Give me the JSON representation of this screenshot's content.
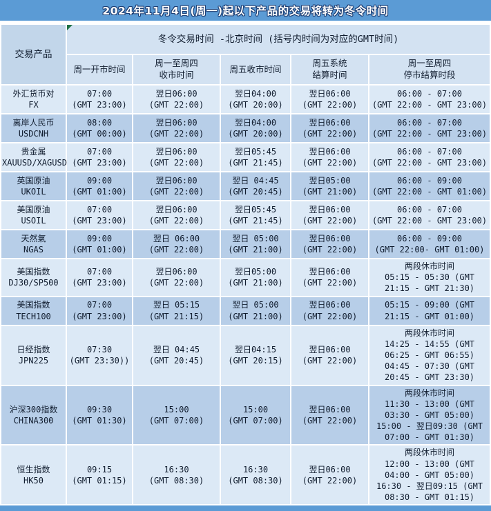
{
  "title": "2024年11月4日(周一)起以下产品的交易将转为冬令时间",
  "colors": {
    "title_bar": "#5b9bd5",
    "title_outline": "#1e3f74",
    "header_bg": "#d3e2f2",
    "product_header_bg": "#c2d6ea",
    "row_light": "#dce9f6",
    "row_dark": "#b7cee8",
    "text": "#101c2e",
    "marker_green": "#1e7145",
    "grid_line": "#ffffff"
  },
  "table": {
    "product_header": "交易产品",
    "group_header": "冬令交易时间 -北京时间 (括号内时间为对应的GMT时间)",
    "columns": [
      {
        "lines": [
          "周一开市时间"
        ]
      },
      {
        "lines": [
          "周一至周四",
          "收市时间"
        ]
      },
      {
        "lines": [
          "周五收市时间"
        ]
      },
      {
        "lines": [
          "周五系统",
          "结算时间"
        ]
      },
      {
        "lines": [
          "周一至周四",
          "停市结算时段"
        ]
      }
    ],
    "rows": [
      {
        "product": [
          "外汇货币对",
          "FX"
        ],
        "monday_open": [
          "07:00",
          "(GMT 23:00)"
        ],
        "mon_thu_close": [
          "翌日06:00",
          "(GMT 22:00)"
        ],
        "fri_close": [
          "翌日04:00",
          "(GMT 20:00)"
        ],
        "fri_settle": [
          "翌日06:00",
          "(GMT 22:00)"
        ],
        "break_time": [
          "06:00 - 07:00",
          "(GMT 22:00 - GMT 23:00)"
        ]
      },
      {
        "product": [
          "离岸人民币",
          "USDCNH"
        ],
        "monday_open": [
          "08:00",
          "(GMT 00:00)"
        ],
        "mon_thu_close": [
          "翌日06:00",
          "(GMT 22:00)"
        ],
        "fri_close": [
          "翌日04:00",
          "(GMT 20:00)"
        ],
        "fri_settle": [
          "翌日06:00",
          "(GMT 22:00)"
        ],
        "break_time": [
          "06:00 - 07:00",
          "(GMT 22:00 - GMT 23:00)"
        ]
      },
      {
        "product": [
          "贵金属",
          "XAUUSD/XAGUSD"
        ],
        "monday_open": [
          "07:00",
          "(GMT 23:00)"
        ],
        "mon_thu_close": [
          "翌日06:00",
          "(GMT 22:00)"
        ],
        "fri_close": [
          "翌日05:45",
          "(GMT 21:45)"
        ],
        "fri_settle": [
          "翌日06:00",
          "(GMT 22:00)"
        ],
        "break_time": [
          "06:00 - 07:00",
          "(GMT 22:00 - GMT 23:00)"
        ]
      },
      {
        "product": [
          "英国原油",
          "UKOIL"
        ],
        "monday_open": [
          "09:00",
          "(GMT 01:00)"
        ],
        "mon_thu_close": [
          "翌日06:00",
          "(GMT 22:00)"
        ],
        "fri_close": [
          "翌日 04:45",
          "(GMT 20:45)"
        ],
        "fri_settle": [
          "翌日05:00",
          "(GMT 21:00)"
        ],
        "break_time": [
          "06:00 - 09:00",
          "(GMT 22:00 - GMT 01:00)"
        ]
      },
      {
        "product": [
          "美国原油",
          "USOIL"
        ],
        "monday_open": [
          "07:00",
          "(GMT 23:00)"
        ],
        "mon_thu_close": [
          "翌日06:00",
          "(GMT 22:00)"
        ],
        "fri_close": [
          "翌日05:45",
          "(GMT 21:45)"
        ],
        "fri_settle": [
          "翌日06:00",
          "(GMT 22:00)"
        ],
        "break_time": [
          "06:00 - 07:00",
          "(GMT 22:00 - GMT 23:00)"
        ]
      },
      {
        "product": [
          "天然氣",
          "NGAS"
        ],
        "monday_open": [
          "09:00",
          "(GMT 01:00)"
        ],
        "mon_thu_close": [
          "翌日 06:00",
          "(GMT 22:00)"
        ],
        "fri_close": [
          "翌日 05:00",
          "(GMT 21:00)"
        ],
        "fri_settle": [
          "翌日06:00",
          "(GMT 22:00)"
        ],
        "break_time": [
          "06:00 - 09:00",
          "(GMT 22:00- GMT 01:00)"
        ]
      },
      {
        "product": [
          "美国指数",
          "DJ30/SP500"
        ],
        "monday_open": [
          "07:00",
          "(GMT 23:00)"
        ],
        "mon_thu_close": [
          "翌日06:00",
          "(GMT 22:00)"
        ],
        "fri_close": [
          "翌日05:00",
          "(GMT 21:00)"
        ],
        "fri_settle": [
          "翌日06:00",
          "(GMT 22:00)"
        ],
        "break_time": [
          "两段休市时间",
          "05:15 - 05:30 (GMT",
          "21:15 - GMT 21:30)"
        ]
      },
      {
        "product": [
          "美国指数",
          "TECH100"
        ],
        "monday_open": [
          "07:00",
          "(GMT 23:00)"
        ],
        "mon_thu_close": [
          "翌日 05:15",
          "(GMT 21:15)"
        ],
        "fri_close": [
          "翌日 05:00",
          "(GMT 21:00)"
        ],
        "fri_settle": [
          "翌日06:00",
          "(GMT 22:00)"
        ],
        "break_time": [
          "05:15 - 09:00 (GMT",
          "21:15 - GMT 01:00)"
        ]
      },
      {
        "product": [
          "日经指数",
          "JPN225"
        ],
        "monday_open": [
          "07:30",
          "(GMT 23:30))"
        ],
        "mon_thu_close": [
          "翌日 04:45",
          "(GMT 20:45)"
        ],
        "fri_close": [
          "翌日04:15",
          "(GMT 20:15)"
        ],
        "fri_settle": [
          "翌日06:00",
          "(GMT 22:00)"
        ],
        "break_time": [
          "两段休市时间",
          "14:25 - 14:55 (GMT",
          "06:25 - GMT 06:55)",
          "04:45 - 07:30 (GMT",
          "20:45 - GMT 23:30)"
        ]
      },
      {
        "product": [
          "沪深300指数",
          "CHINA300"
        ],
        "monday_open": [
          "09:30",
          "(GMT 01:30)"
        ],
        "mon_thu_close": [
          "15:00",
          "(GMT 07:00)"
        ],
        "fri_close": [
          "15:00",
          "(GMT 07:00)"
        ],
        "fri_settle": [
          "翌日06:00",
          "(GMT 22:00)"
        ],
        "break_time": [
          "两段休市时间",
          "11:30 - 13:00 (GMT",
          "03:30 - GMT 05:00)",
          "15:00 - 翌日09:30 (GMT",
          "07:00 - GMT 01:30)"
        ]
      },
      {
        "product": [
          "恒生指数",
          "HK50"
        ],
        "monday_open": [
          "09:15",
          "(GMT 01:15)"
        ],
        "mon_thu_close": [
          "16:30",
          "(GMT 08:30)"
        ],
        "fri_close": [
          "16:30",
          "(GMT 08:30)"
        ],
        "fri_settle": [
          "翌日06:00",
          "(GMT 22:00)"
        ],
        "break_time": [
          "两段休市时间",
          "12:00 - 13:00 (GMT",
          "04:00 - GMT 05:00)",
          "16:30 - 翌日09:15 (GMT",
          "08:30 - GMT 01:15)"
        ]
      }
    ]
  }
}
